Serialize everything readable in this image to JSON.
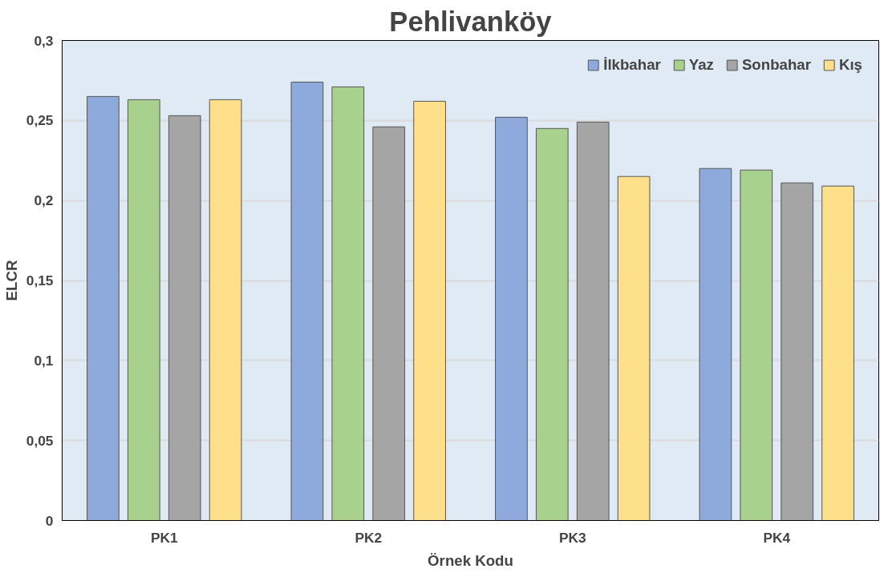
{
  "chart_data": {
    "type": "bar",
    "title": "Pehlivanköy",
    "xlabel": "Örnek Kodu",
    "ylabel": "ELCR",
    "categories": [
      "PK1",
      "PK2",
      "PK3",
      "PK4"
    ],
    "series": [
      {
        "name": "İlkbahar",
        "color": "#8eaadc",
        "values": [
          0.265,
          0.274,
          0.252,
          0.22
        ]
      },
      {
        "name": "Yaz",
        "color": "#a9d18e",
        "values": [
          0.263,
          0.271,
          0.245,
          0.219
        ]
      },
      {
        "name": "Sonbahar",
        "color": "#a5a5a5",
        "values": [
          0.253,
          0.246,
          0.249,
          0.211
        ]
      },
      {
        "name": "Kış",
        "color": "#ffe08a",
        "values": [
          0.263,
          0.262,
          0.215,
          0.209
        ]
      }
    ],
    "ylim": [
      0,
      0.3
    ],
    "yticks": [
      {
        "value": 0,
        "label": "0"
      },
      {
        "value": 0.05,
        "label": "0,05"
      },
      {
        "value": 0.1,
        "label": "0,1"
      },
      {
        "value": 0.15,
        "label": "0,15"
      },
      {
        "value": 0.2,
        "label": "0,2"
      },
      {
        "value": 0.25,
        "label": "0,25"
      },
      {
        "value": 0.3,
        "label": "0,3"
      }
    ],
    "grid": "y",
    "legend": "top right"
  }
}
